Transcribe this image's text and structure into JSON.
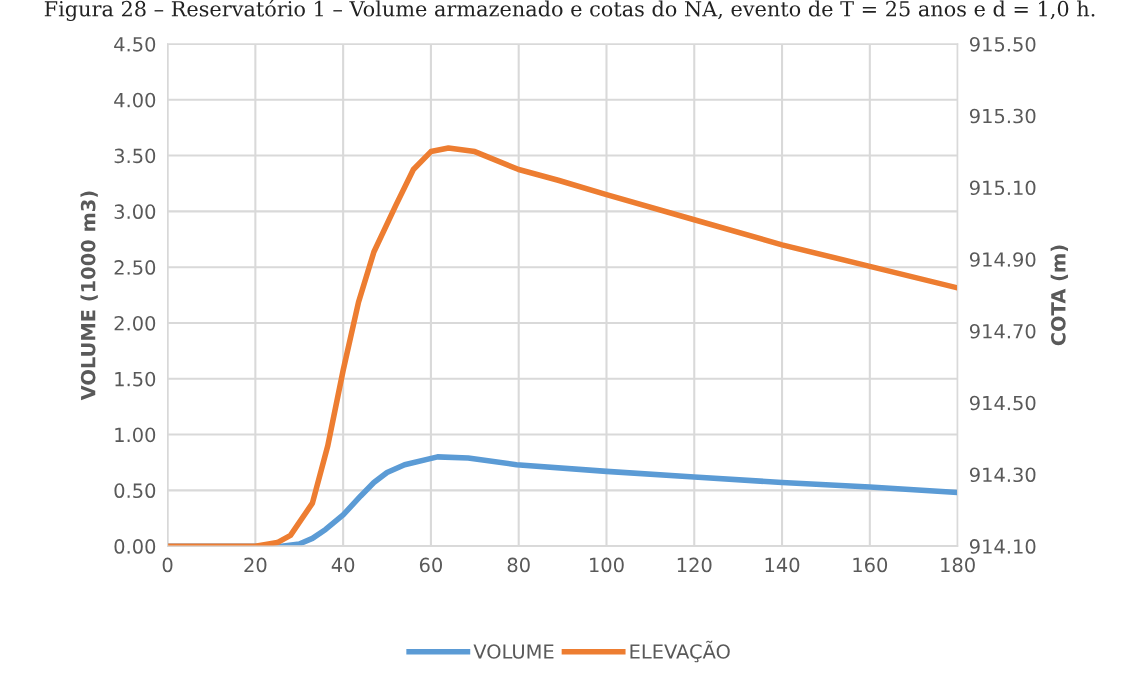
{
  "chart_data": {
    "type": "line",
    "title": "Figura 28 – Reservatório 1 – Volume armazenado e cotas do NA, evento de T = 25 anos e d = 1,0 h.",
    "ylabel": "VOLUME (1000 m3)",
    "y2label": "COTA (m)",
    "xlim": [
      0,
      180
    ],
    "xticks": [
      0,
      20,
      40,
      60,
      80,
      100,
      120,
      140,
      160,
      180
    ],
    "ylim": [
      0,
      4.5
    ],
    "yticks": [
      {
        "value": 0,
        "label": "0.00"
      },
      {
        "value": 0.5,
        "label": "0.50"
      },
      {
        "value": 1,
        "label": "1.00"
      },
      {
        "value": 1.5,
        "label": "1.50"
      },
      {
        "value": 2,
        "label": "2.00"
      },
      {
        "value": 2.5,
        "label": "2.50"
      },
      {
        "value": 3,
        "label": "3.00"
      },
      {
        "value": 3.5,
        "label": "3.50"
      },
      {
        "value": 4,
        "label": "4.00"
      },
      {
        "value": 4.5,
        "label": "4.50"
      }
    ],
    "y2lim": [
      914.1,
      915.5
    ],
    "y2ticks": [
      {
        "value": 914.1,
        "label": "914.10"
      },
      {
        "value": 914.3,
        "label": "914.30"
      },
      {
        "value": 914.5,
        "label": "914.50"
      },
      {
        "value": 914.7,
        "label": "914.70"
      },
      {
        "value": 914.9,
        "label": "914.90"
      },
      {
        "value": 915.1,
        "label": "915.10"
      },
      {
        "value": 915.3,
        "label": "915.30"
      },
      {
        "value": 915.5,
        "label": "915.50"
      }
    ],
    "grid": true,
    "legend": "bottom",
    "marker": "none",
    "line_style": "solid",
    "series": [
      {
        "name": "VOLUME",
        "color": "#5b9bd5",
        "x": [
          0,
          20,
          26,
          30,
          33,
          36,
          40,
          44,
          47,
          50,
          54,
          61.5,
          68.5,
          79.5,
          100,
          120,
          140,
          160,
          180
        ],
        "values": [
          0,
          0,
          0,
          0.02,
          0.07,
          0.15,
          0.28,
          0.45,
          0.57,
          0.66,
          0.73,
          0.8,
          0.79,
          0.73,
          0.67,
          0.62,
          0.57,
          0.53,
          0.48
        ]
      },
      {
        "name": "ELEVAÇÃO",
        "color": "#ed7d31",
        "axis": "y2",
        "x": [
          0,
          20,
          25,
          28,
          33,
          36.5,
          40,
          43.5,
          47,
          52,
          56,
          60,
          64,
          70,
          80,
          89,
          100,
          120,
          140,
          160,
          180
        ],
        "values": [
          914.1,
          914.1,
          914.11,
          914.13,
          914.22,
          914.38,
          914.59,
          914.78,
          914.92,
          915.05,
          915.15,
          915.2,
          915.21,
          915.2,
          915.15,
          915.12,
          915.08,
          915.01,
          914.94,
          914.88,
          914.82
        ]
      }
    ]
  }
}
